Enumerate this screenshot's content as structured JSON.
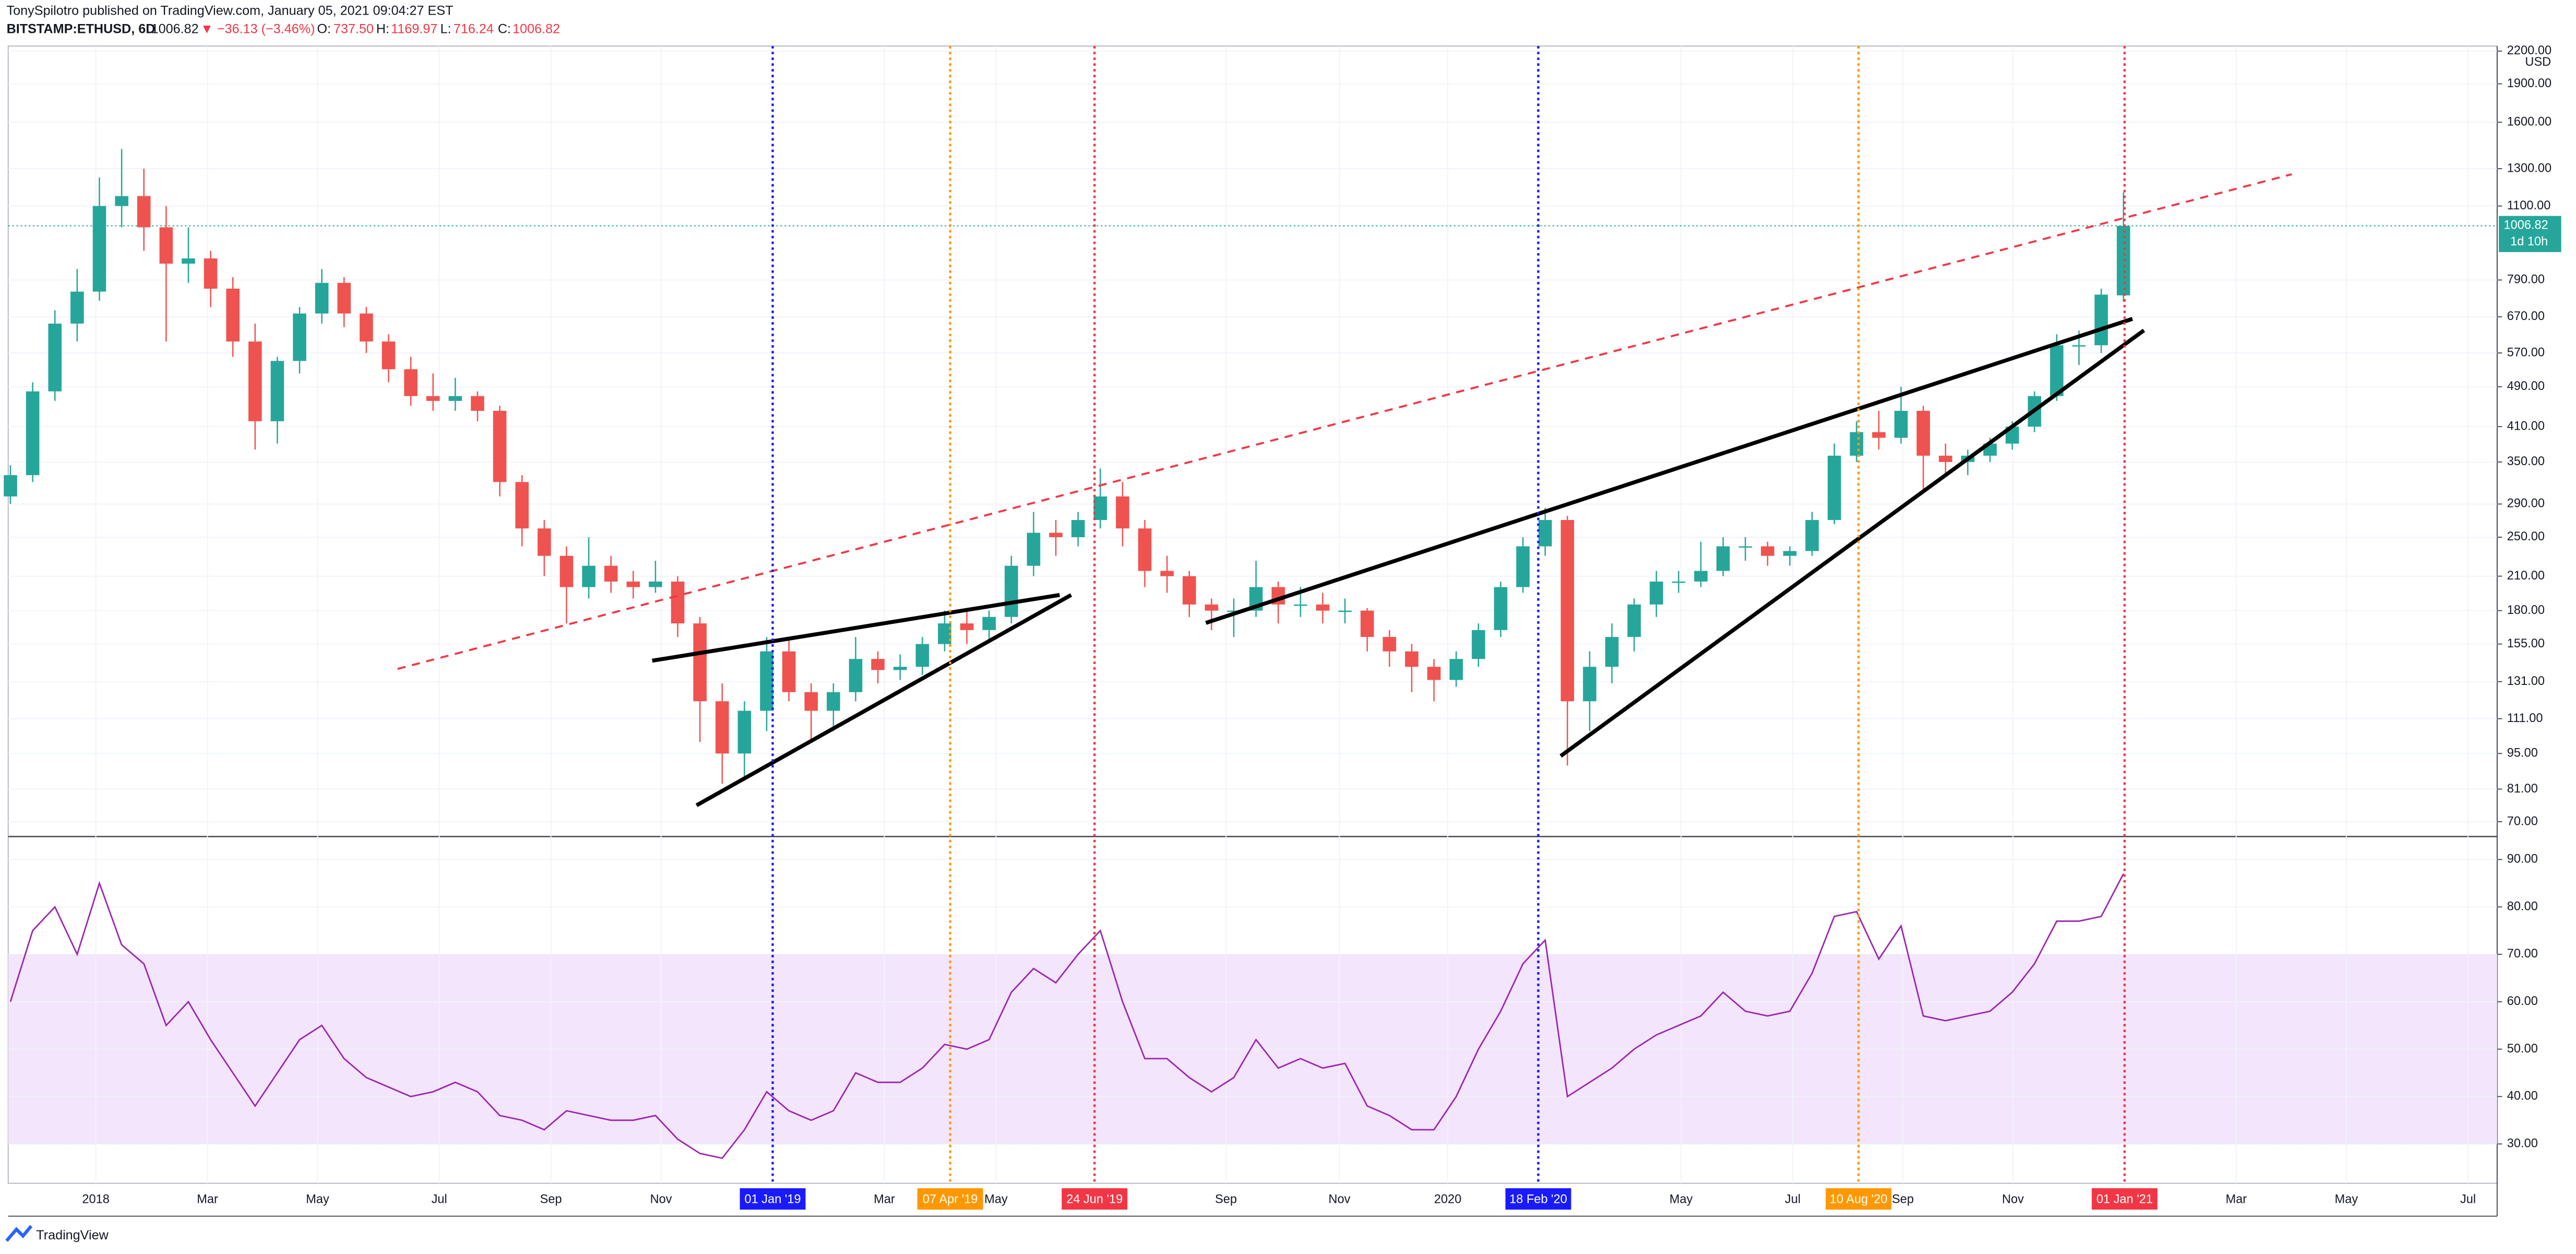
{
  "header": {
    "author_line": "TonySpilotro published on TradingView.com, January 05, 2021 09:04:27 EST",
    "symbol": "BITSTAMP:ETHUSD, 6D",
    "price": "1006.82",
    "change": "▼ −36.13 (−3.46%)",
    "o_label": "O:",
    "o": "737.50",
    "h_label": "H:",
    "h": "1169.97",
    "l_label": "L:",
    "l": "716.24",
    "c_label": "C:",
    "c": "1006.82"
  },
  "footer": "TradingView",
  "chart_data": [
    {
      "type": "candlestick",
      "currency": "USD",
      "log_scale": true,
      "grid": true,
      "up_color": "#26a69a",
      "down_color": "#ef5350",
      "xlim": [
        -0.1,
        111.8
      ],
      "ylim": [
        66,
        2250
      ],
      "ohlc": [
        [
          300,
          345,
          290,
          330
        ],
        [
          330,
          500,
          320,
          480
        ],
        [
          480,
          690,
          460,
          650
        ],
        [
          650,
          830,
          600,
          750
        ],
        [
          750,
          1250,
          720,
          1100
        ],
        [
          1100,
          1420,
          1000,
          1150
        ],
        [
          1150,
          1300,
          900,
          1000
        ],
        [
          1000,
          1100,
          600,
          850
        ],
        [
          850,
          1000,
          780,
          870
        ],
        [
          870,
          900,
          700,
          760
        ],
        [
          760,
          800,
          560,
          600
        ],
        [
          600,
          650,
          370,
          420
        ],
        [
          420,
          560,
          380,
          550
        ],
        [
          550,
          700,
          520,
          680
        ],
        [
          680,
          830,
          650,
          780
        ],
        [
          780,
          800,
          640,
          680
        ],
        [
          680,
          700,
          570,
          600
        ],
        [
          600,
          620,
          500,
          530
        ],
        [
          530,
          560,
          450,
          470
        ],
        [
          470,
          520,
          440,
          460
        ],
        [
          460,
          510,
          440,
          470
        ],
        [
          470,
          480,
          420,
          440
        ],
        [
          440,
          450,
          300,
          320
        ],
        [
          320,
          330,
          240,
          260
        ],
        [
          260,
          270,
          210,
          230
        ],
        [
          230,
          240,
          170,
          200
        ],
        [
          200,
          250,
          190,
          220
        ],
        [
          220,
          230,
          195,
          205
        ],
        [
          205,
          215,
          190,
          200
        ],
        [
          200,
          225,
          195,
          205
        ],
        [
          205,
          210,
          160,
          170
        ],
        [
          170,
          175,
          100,
          120
        ],
        [
          120,
          130,
          83,
          95
        ],
        [
          95,
          120,
          85,
          115
        ],
        [
          115,
          160,
          105,
          150
        ],
        [
          150,
          160,
          120,
          125
        ],
        [
          125,
          130,
          100,
          115
        ],
        [
          115,
          130,
          105,
          125
        ],
        [
          125,
          160,
          120,
          145
        ],
        [
          145,
          150,
          130,
          138
        ],
        [
          138,
          148,
          132,
          140
        ],
        [
          140,
          160,
          135,
          155
        ],
        [
          155,
          180,
          150,
          170
        ],
        [
          170,
          180,
          155,
          165
        ],
        [
          165,
          180,
          158,
          175
        ],
        [
          175,
          230,
          170,
          220
        ],
        [
          220,
          280,
          210,
          255
        ],
        [
          255,
          270,
          230,
          250
        ],
        [
          250,
          280,
          240,
          270
        ],
        [
          270,
          340,
          260,
          300
        ],
        [
          300,
          320,
          240,
          260
        ],
        [
          260,
          270,
          200,
          215
        ],
        [
          215,
          230,
          195,
          210
        ],
        [
          210,
          215,
          175,
          185
        ],
        [
          185,
          190,
          165,
          180
        ],
        [
          180,
          190,
          160,
          180
        ],
        [
          180,
          225,
          175,
          200
        ],
        [
          200,
          205,
          170,
          185
        ],
        [
          185,
          200,
          175,
          185
        ],
        [
          185,
          195,
          170,
          180
        ],
        [
          180,
          190,
          170,
          180
        ],
        [
          180,
          182,
          150,
          160
        ],
        [
          160,
          165,
          140,
          150
        ],
        [
          150,
          155,
          125,
          140
        ],
        [
          140,
          145,
          120,
          132
        ],
        [
          132,
          150,
          128,
          145
        ],
        [
          145,
          170,
          140,
          165
        ],
        [
          165,
          205,
          160,
          200
        ],
        [
          200,
          250,
          195,
          240
        ],
        [
          240,
          285,
          230,
          270
        ],
        [
          270,
          275,
          90,
          120
        ],
        [
          120,
          150,
          105,
          140
        ],
        [
          140,
          170,
          130,
          160
        ],
        [
          160,
          190,
          150,
          185
        ],
        [
          185,
          215,
          175,
          205
        ],
        [
          205,
          215,
          195,
          205
        ],
        [
          205,
          245,
          200,
          215
        ],
        [
          215,
          250,
          210,
          240
        ],
        [
          240,
          250,
          225,
          240
        ],
        [
          240,
          245,
          220,
          230
        ],
        [
          230,
          240,
          220,
          235
        ],
        [
          235,
          280,
          230,
          270
        ],
        [
          270,
          380,
          265,
          360
        ],
        [
          360,
          420,
          350,
          400
        ],
        [
          400,
          440,
          370,
          390
        ],
        [
          390,
          490,
          380,
          440
        ],
        [
          440,
          450,
          310,
          360
        ],
        [
          360,
          380,
          330,
          350
        ],
        [
          350,
          370,
          330,
          360
        ],
        [
          360,
          390,
          350,
          380
        ],
        [
          380,
          420,
          370,
          410
        ],
        [
          410,
          480,
          400,
          470
        ],
        [
          470,
          620,
          460,
          590
        ],
        [
          590,
          630,
          540,
          590
        ],
        [
          590,
          760,
          570,
          740
        ],
        [
          737.5,
          1169.97,
          716.24,
          1006.82
        ]
      ],
      "yticks": [
        {
          "value": 2200,
          "label": "2200.00"
        },
        {
          "value": 1900,
          "label": "1900.00"
        },
        {
          "value": 1600,
          "label": "1600.00"
        },
        {
          "value": 1300,
          "label": "1300.00"
        },
        {
          "value": 1100,
          "label": "1100.00"
        },
        {
          "value": 790,
          "label": "790.00"
        },
        {
          "value": 670,
          "label": "670.00"
        },
        {
          "value": 570,
          "label": "570.00"
        },
        {
          "value": 490,
          "label": "490.00"
        },
        {
          "value": 410,
          "label": "410.00"
        },
        {
          "value": 350,
          "label": "350.00"
        },
        {
          "value": 290,
          "label": "290.00"
        },
        {
          "value": 250,
          "label": "250.00"
        },
        {
          "value": 210,
          "label": "210.00"
        },
        {
          "value": 180,
          "label": "180.00"
        },
        {
          "value": 155,
          "label": "155.00"
        },
        {
          "value": 131,
          "label": "131.00"
        },
        {
          "value": 111,
          "label": "111.00"
        },
        {
          "value": 95,
          "label": "95.00"
        },
        {
          "value": 81,
          "label": "81.00"
        },
        {
          "value": 70,
          "label": "70.00"
        }
      ],
      "xticks": [
        {
          "value": 3.84,
          "label": "2018"
        },
        {
          "value": 8.86,
          "label": "Mar"
        },
        {
          "value": 13.81,
          "label": "May"
        },
        {
          "value": 19.28,
          "label": "Jul"
        },
        {
          "value": 24.3,
          "label": "Sep"
        },
        {
          "value": 29.25,
          "label": "Nov"
        },
        {
          "value": 39.29,
          "label": "Mar"
        },
        {
          "value": 44.31,
          "label": "May"
        },
        {
          "value": 54.65,
          "label": "Sep"
        },
        {
          "value": 59.75,
          "label": "Nov"
        },
        {
          "value": 64.62,
          "label": "2020"
        },
        {
          "value": 75.11,
          "label": "May"
        },
        {
          "value": 80.13,
          "label": "Jul"
        },
        {
          "value": 85.08,
          "label": "Sep"
        },
        {
          "value": 90.03,
          "label": "Nov"
        },
        {
          "value": 100.07,
          "label": "Mar"
        },
        {
          "value": 105.02,
          "label": "May"
        },
        {
          "value": 110.49,
          "label": "Jul"
        }
      ],
      "markers": [
        {
          "value": 34.27,
          "label": "01 Jan '19",
          "color": "#1a1aff"
        },
        {
          "value": 42.25,
          "label": "07 Apr '19",
          "color": "#ff9800"
        },
        {
          "value": 48.74,
          "label": "24 Jun '19",
          "color": "#f23645"
        },
        {
          "value": 68.69,
          "label": "18 Feb '20",
          "color": "#1a1aff"
        },
        {
          "value": 83.09,
          "label": "10 Aug '20",
          "color": "#ff9800"
        },
        {
          "value": 95.05,
          "label": "01 Jan '21",
          "color": "#f23645"
        }
      ],
      "last_price": {
        "value": 1006.82,
        "label": "1006.82",
        "countdown": "1d 10h"
      }
    },
    {
      "type": "line",
      "color": "#9c27b0",
      "band": [
        30,
        70
      ],
      "band_color": "#f3e5fc",
      "xlim": [
        -0.1,
        111.8
      ],
      "ylim": [
        21.7,
        94.5
      ],
      "yticks": [
        {
          "value": 90,
          "label": "90.00"
        },
        {
          "value": 80,
          "label": "80.00"
        },
        {
          "value": 70,
          "label": "70.00"
        },
        {
          "value": 60,
          "label": "60.00"
        },
        {
          "value": 50,
          "label": "50.00"
        },
        {
          "value": 40,
          "label": "40.00"
        },
        {
          "value": 30,
          "label": "30.00"
        }
      ],
      "values": [
        60,
        75,
        80,
        70,
        85,
        72,
        68,
        55,
        60,
        52,
        45,
        38,
        45,
        52,
        55,
        48,
        44,
        42,
        40,
        41,
        43,
        41,
        36,
        35,
        33,
        37,
        36,
        35,
        35,
        36,
        31,
        28,
        27,
        33,
        41,
        37,
        35,
        37,
        45,
        43,
        43,
        46,
        51,
        50,
        52,
        62,
        67,
        64,
        70,
        75,
        60,
        48,
        48,
        44,
        41,
        44,
        52,
        46,
        48,
        46,
        47,
        38,
        36,
        33,
        33,
        40,
        50,
        58,
        68,
        73,
        40,
        43,
        46,
        50,
        53,
        55,
        57,
        62,
        58,
        57,
        58,
        66,
        78,
        79,
        69,
        76,
        57,
        56,
        57,
        58,
        62,
        68,
        77,
        77,
        78,
        87
      ]
    }
  ]
}
